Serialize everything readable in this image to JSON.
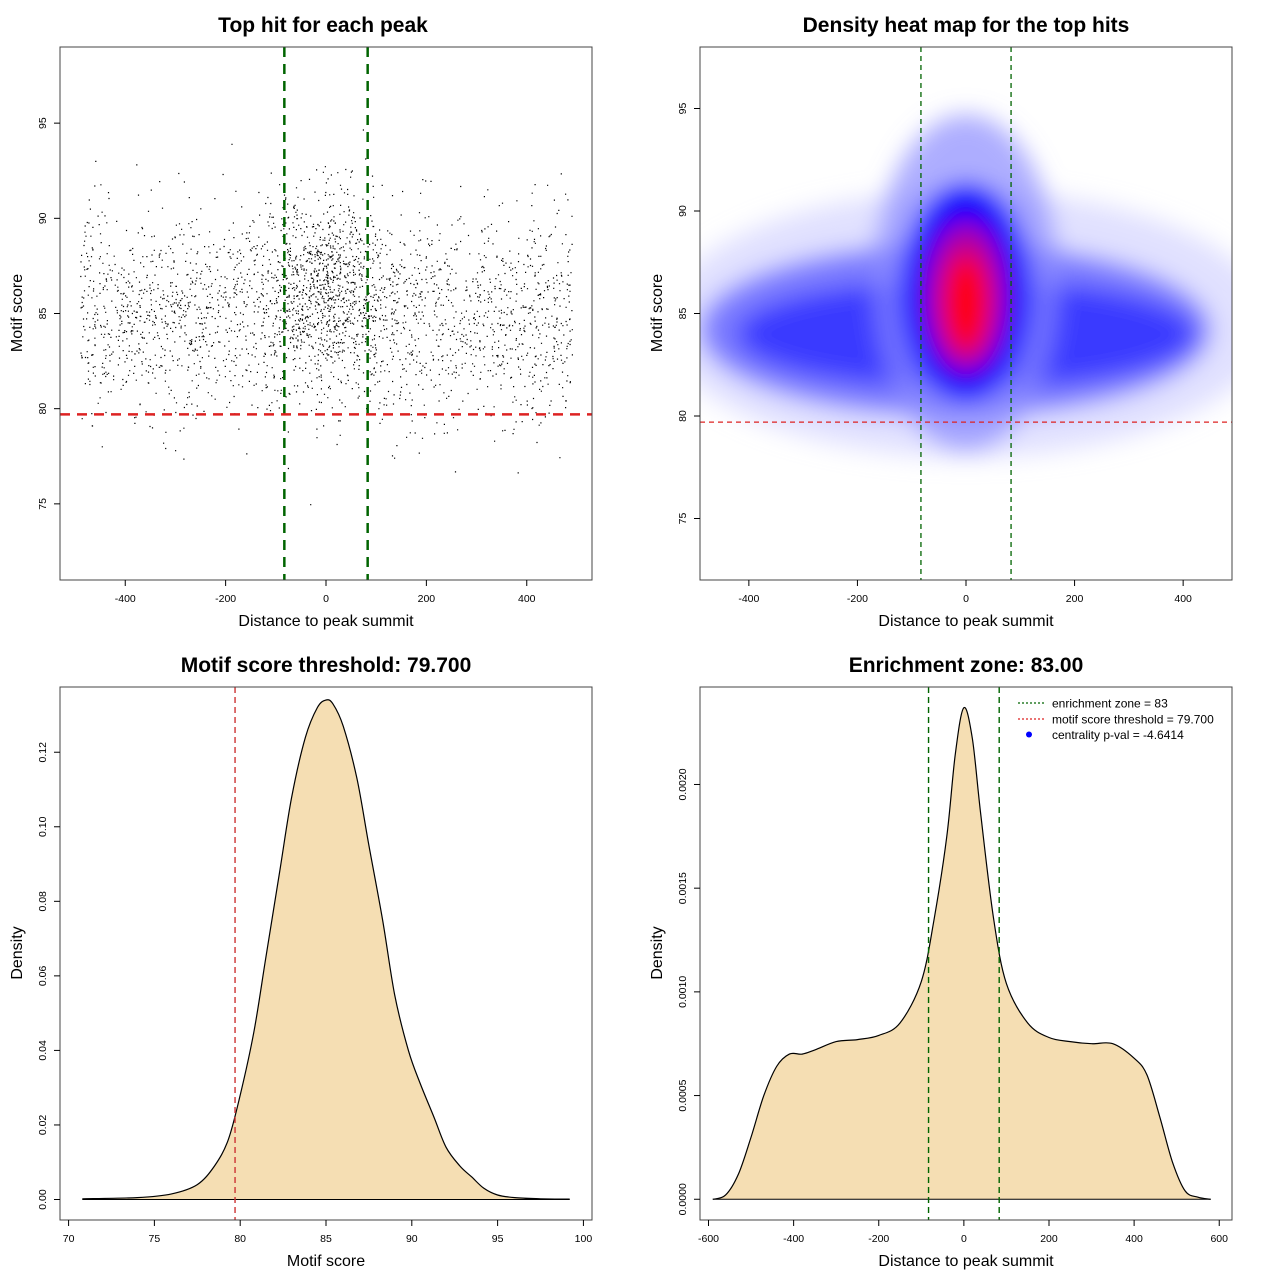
{
  "chart_data": [
    {
      "type": "scatter",
      "title": "Top hit for each peak",
      "xlabel": "Distance to peak summit",
      "ylabel": "Motif score",
      "xlim": [
        -530,
        530
      ],
      "ylim": [
        71,
        99
      ],
      "xticks": [
        -400,
        -200,
        0,
        200,
        400
      ],
      "yticks": [
        75,
        80,
        85,
        90,
        95
      ],
      "xtick_labels": [
        "-400",
        "-200",
        "0",
        "200",
        "400"
      ],
      "ytick_labels": [
        "75",
        "80",
        "85",
        "90",
        "95"
      ],
      "vlines": [
        -83,
        83
      ],
      "hline": 79.7,
      "vline_color": "#006400",
      "hline_color": "#dd2222",
      "point_count_approx": 11000,
      "central_enrichment_sd": 55,
      "background_score_mean": 85,
      "central_score_mean": 86.5
    },
    {
      "type": "heatmap",
      "title": "Density heat map for the top hits",
      "xlabel": "Distance to peak summit",
      "ylabel": "Motif score",
      "xlim": [
        -490,
        490
      ],
      "ylim": [
        72,
        98
      ],
      "xticks": [
        -400,
        -200,
        0,
        200,
        400
      ],
      "yticks": [
        75,
        80,
        85,
        90,
        95
      ],
      "xtick_labels": [
        "-400",
        "-200",
        "0",
        "200",
        "400"
      ],
      "ytick_labels": [
        "75",
        "80",
        "85",
        "90",
        "95"
      ],
      "vlines": [
        -83,
        83
      ],
      "hline": 79.7,
      "peak_center": [
        0,
        85.5
      ],
      "color_scale": [
        "#ffffff",
        "#0000ff",
        "#ff0000"
      ]
    },
    {
      "type": "area",
      "title": "Motif score threshold: 79.700",
      "xlabel": "Motif score",
      "ylabel": "Density",
      "xlim": [
        69.5,
        100.5
      ],
      "ylim": [
        -0.0055,
        0.1375
      ],
      "xticks": [
        70,
        75,
        80,
        85,
        90,
        95,
        100
      ],
      "yticks": [
        0,
        0.02,
        0.04,
        0.06,
        0.08,
        0.1,
        0.12
      ],
      "xtick_labels": [
        "70",
        "75",
        "80",
        "85",
        "90",
        "95",
        "100"
      ],
      "ytick_labels": [
        "0.00",
        "0.02",
        "0.04",
        "0.06",
        "0.08",
        "0.10",
        "0.12"
      ],
      "x": [
        70.8,
        74,
        76,
        77.5,
        78.5,
        79.3,
        80.0,
        80.8,
        81.5,
        82.3,
        83.0,
        83.8,
        84.5,
        85.0,
        85.4,
        86.0,
        86.8,
        87.5,
        88.3,
        89.0,
        89.8,
        90.5,
        91.3,
        92.0,
        92.8,
        93.5,
        94.2,
        95.0,
        96.0,
        97.5,
        99.2
      ],
      "y": [
        0.0002,
        0.0005,
        0.0015,
        0.004,
        0.009,
        0.016,
        0.028,
        0.045,
        0.065,
        0.088,
        0.108,
        0.124,
        0.132,
        0.134,
        0.133,
        0.127,
        0.113,
        0.095,
        0.075,
        0.055,
        0.04,
        0.031,
        0.022,
        0.014,
        0.009,
        0.006,
        0.003,
        0.0012,
        0.0005,
        0.0002,
        0.0001
      ],
      "vline": 79.7,
      "fill_color": "#f5deb3"
    },
    {
      "type": "area",
      "title": "Enrichment zone: 83.00",
      "xlabel": "Distance to peak summit",
      "ylabel": "Density",
      "xlim": [
        -620,
        630
      ],
      "ylim": [
        -0.0001,
        0.00247
      ],
      "xticks": [
        -600,
        -400,
        -200,
        0,
        200,
        400,
        600
      ],
      "yticks": [
        0,
        0.0005,
        0.001,
        0.0015,
        0.002
      ],
      "xtick_labels": [
        "-600",
        "-400",
        "-200",
        "0",
        "200",
        "400",
        "600"
      ],
      "ytick_labels": [
        "0.0000",
        "0.0005",
        "0.0010",
        "0.0015",
        "0.0020"
      ],
      "x": [
        -590,
        -560,
        -530,
        -500,
        -470,
        -440,
        -410,
        -380,
        -350,
        -300,
        -250,
        -200,
        -150,
        -100,
        -70,
        -40,
        -20,
        0,
        20,
        40,
        70,
        100,
        150,
        200,
        250,
        300,
        350,
        400,
        430,
        460,
        490,
        520,
        550,
        580
      ],
      "y": [
        0.0,
        2e-05,
        0.00012,
        0.0003,
        0.0005,
        0.00064,
        0.0007,
        0.0007,
        0.00072,
        0.00076,
        0.00077,
        0.00079,
        0.00085,
        0.00105,
        0.00135,
        0.00175,
        0.00215,
        0.00237,
        0.00222,
        0.00185,
        0.00135,
        0.00104,
        0.00085,
        0.00078,
        0.00076,
        0.00075,
        0.00075,
        0.00068,
        0.0006,
        0.0004,
        0.00018,
        4e-05,
        1e-05,
        0.0
      ],
      "vlines": [
        -83,
        83
      ],
      "fill_color": "#f5deb3",
      "legend": {
        "placement": "top-right",
        "entries": [
          {
            "label": "enrichment zone = 83",
            "color": "#006400",
            "style": "dotted-line"
          },
          {
            "label": "motif score threshold = 79.700",
            "color": "#dd2222",
            "style": "dotted-line"
          },
          {
            "label": "centrality p-val = -4.6414",
            "color": "#0000ff",
            "style": "point"
          }
        ]
      }
    }
  ]
}
